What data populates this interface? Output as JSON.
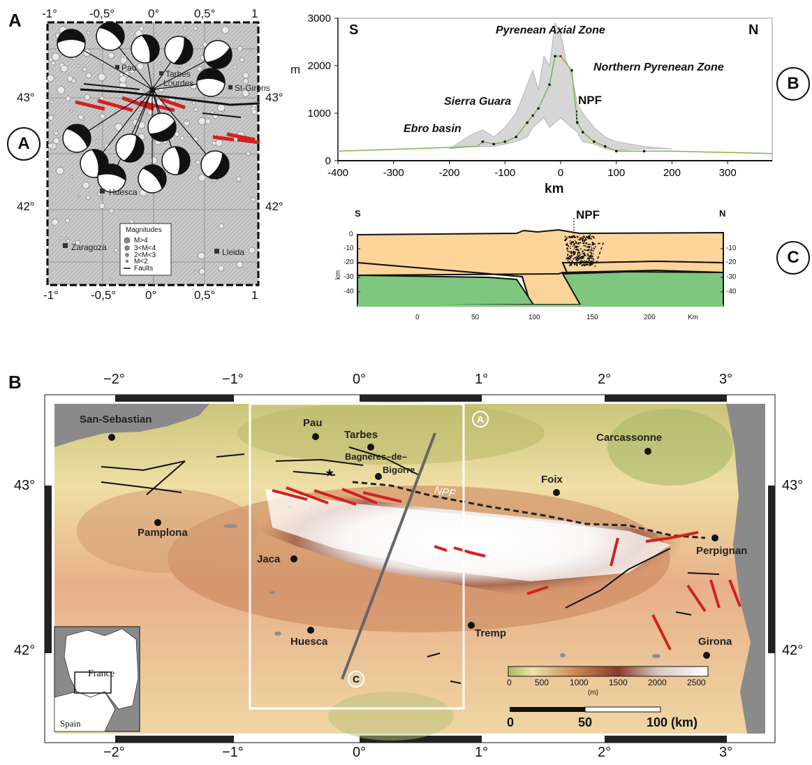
{
  "panel_a": {
    "letter": "A",
    "side_label": "A",
    "top_ticks": [
      "-1°",
      "-0,5°",
      "0°",
      "0,5°",
      "1"
    ],
    "bottom_ticks": [
      "-1°",
      "-0,5°",
      "0°",
      "0,5°",
      "1"
    ],
    "lat_ticks": [
      "43°",
      "42°"
    ],
    "cities": [
      "Pau",
      "Tarbes",
      "Lourdes",
      "St-Girons",
      "Huesca",
      "Zaragoza",
      "Lleida"
    ],
    "legend": {
      "title": "Magnitudes",
      "items": [
        "M>4",
        "3<M<4",
        "2<M<3",
        "M<2",
        "Faults"
      ]
    }
  },
  "panel_b_profile": {
    "label": "B",
    "south": "S",
    "north": "N",
    "zones": [
      "Pyrenean Axial Zone",
      "Northern Pyrenean Zone",
      "Sierra Guara",
      "Ebro basin"
    ],
    "fault": "NPF",
    "chart_data": {
      "type": "area",
      "xlabel": "km",
      "ylabel": "m",
      "xlim": [
        -400,
        380
      ],
      "ylim": [
        0,
        3000
      ],
      "xticks": [
        "-400",
        "-300",
        "-200",
        "-100",
        "0",
        "100",
        "200",
        "300"
      ],
      "yticks": [
        "0",
        "1000",
        "2000",
        "3000"
      ],
      "series": [
        {
          "x": [
            -400,
            -150,
            -140,
            -120,
            -100,
            -80,
            -60,
            -50,
            -40,
            -20,
            -10,
            0,
            20,
            30,
            40,
            60,
            80,
            100,
            150,
            200,
            380
          ],
          "y": [
            200,
            300,
            400,
            350,
            400,
            500,
            800,
            950,
            1100,
            1600,
            2200,
            2200,
            1900,
            800,
            600,
            400,
            300,
            200,
            200,
            200,
            150
          ]
        }
      ],
      "envelope_upper": {
        "x": [
          -200,
          -160,
          -140,
          -120,
          -100,
          -80,
          -60,
          -50,
          -40,
          -30,
          -20,
          -10,
          0,
          10,
          20,
          30,
          40,
          60,
          80,
          100,
          150,
          200
        ],
        "y": [
          250,
          550,
          650,
          500,
          700,
          1000,
          1600,
          1900,
          1500,
          2200,
          2000,
          2900,
          2700,
          2100,
          1800,
          1200,
          1000,
          700,
          500,
          400,
          300,
          250
        ]
      },
      "envelope_lower": {
        "x": [
          -200,
          -160,
          -140,
          -120,
          -100,
          -80,
          -60,
          -50,
          -40,
          -30,
          -20,
          -10,
          0,
          10,
          20,
          30,
          40,
          60,
          80,
          100,
          150,
          200
        ],
        "y": [
          250,
          300,
          300,
          300,
          350,
          400,
          500,
          700,
          800,
          900,
          700,
          800,
          900,
          800,
          700,
          600,
          400,
          350,
          250,
          220,
          250,
          250
        ]
      }
    }
  },
  "panel_c_section": {
    "label": "C",
    "south": "S",
    "north": "N",
    "fault": "NPF",
    "ylabel": "km",
    "xunit": "Km",
    "depth_ticks": [
      "0",
      "-10",
      "-20",
      "-30",
      "-40"
    ],
    "right_ticks": [
      "-10",
      "-20",
      "-30",
      "-40"
    ],
    "distance_ticks": [
      "0",
      "50",
      "100",
      "150",
      "200"
    ]
  },
  "panel_map": {
    "letter": "B",
    "lon_ticks": [
      "−2°",
      "−1°",
      "0°",
      "1°",
      "2°",
      "3°"
    ],
    "lat_ticks": [
      "43°",
      "42°"
    ],
    "cities": [
      "San-Sebastian",
      "Pau",
      "Tarbes",
      "Bagneres–de–",
      "Bigorre",
      "Carcassonne",
      "Foix",
      "Pamplona",
      "Jaca",
      "Perpignan",
      "Huesca",
      "Tremp",
      "Girona"
    ],
    "fault_label": "NPF",
    "box_label": "A",
    "profile_label": "C",
    "inset_labels": [
      "France",
      "Spain"
    ],
    "colorbar": {
      "ticks": [
        "0",
        "500",
        "1000",
        "1500",
        "2000",
        "2500"
      ],
      "unit": "(m)"
    },
    "scalebar": [
      "0",
      "50",
      "100 (km)"
    ]
  },
  "colors": {
    "fault_red": "#d42020",
    "sediment": "#fdd49a",
    "mantle": "#7fc77f",
    "profile_line": "#7ab648"
  }
}
